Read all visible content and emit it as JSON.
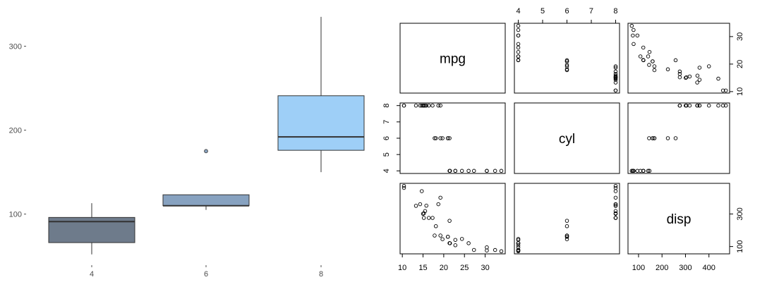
{
  "chart_data": [
    {
      "type": "box",
      "categories": [
        "4",
        "6",
        "8"
      ],
      "yticks": [
        "100",
        "200",
        "300"
      ],
      "ylim": [
        40,
        345
      ],
      "grid": false,
      "boxes": [
        {
          "category": "4",
          "min": 52,
          "q1": 66,
          "median": 91,
          "q3": 96,
          "max": 113,
          "outliers": [],
          "fill": "#6e7b8b"
        },
        {
          "category": "6",
          "min": 105,
          "q1": 110,
          "median": 110,
          "q3": 123,
          "max": 123,
          "outliers": [
            175
          ],
          "fill": "#87a2c0"
        },
        {
          "category": "8",
          "min": 150,
          "q1": 176,
          "median": 192,
          "q3": 241,
          "max": 335,
          "outliers": [],
          "fill": "#9ecff7"
        }
      ]
    },
    {
      "type": "scatter-matrix",
      "variables": [
        "mpg",
        "cyl",
        "disp"
      ],
      "ranges": {
        "mpg": [
          10.4,
          33.9
        ],
        "cyl": [
          4,
          8
        ],
        "disp": [
          71.1,
          472
        ]
      },
      "ticks": {
        "mpg": [
          10,
          15,
          20,
          25,
          30
        ],
        "cyl": [
          4,
          5,
          6,
          7,
          8
        ],
        "disp": [
          100,
          200,
          300,
          400
        ],
        "mpg_right": [
          10,
          20,
          30
        ],
        "disp_right": [
          100,
          300
        ]
      },
      "points": [
        {
          "mpg": 21.0,
          "cyl": 6,
          "disp": 160
        },
        {
          "mpg": 21.0,
          "cyl": 6,
          "disp": 160
        },
        {
          "mpg": 22.8,
          "cyl": 4,
          "disp": 108
        },
        {
          "mpg": 21.4,
          "cyl": 6,
          "disp": 258
        },
        {
          "mpg": 18.7,
          "cyl": 8,
          "disp": 360
        },
        {
          "mpg": 18.1,
          "cyl": 6,
          "disp": 225
        },
        {
          "mpg": 14.3,
          "cyl": 8,
          "disp": 360
        },
        {
          "mpg": 24.4,
          "cyl": 4,
          "disp": 146.7
        },
        {
          "mpg": 22.8,
          "cyl": 4,
          "disp": 140.8
        },
        {
          "mpg": 19.2,
          "cyl": 6,
          "disp": 167.6
        },
        {
          "mpg": 17.8,
          "cyl": 6,
          "disp": 167.6
        },
        {
          "mpg": 16.4,
          "cyl": 8,
          "disp": 275.8
        },
        {
          "mpg": 17.3,
          "cyl": 8,
          "disp": 275.8
        },
        {
          "mpg": 15.2,
          "cyl": 8,
          "disp": 275.8
        },
        {
          "mpg": 10.4,
          "cyl": 8,
          "disp": 472
        },
        {
          "mpg": 10.4,
          "cyl": 8,
          "disp": 460
        },
        {
          "mpg": 14.7,
          "cyl": 8,
          "disp": 440
        },
        {
          "mpg": 32.4,
          "cyl": 4,
          "disp": 78.7
        },
        {
          "mpg": 30.4,
          "cyl": 4,
          "disp": 75.7
        },
        {
          "mpg": 33.9,
          "cyl": 4,
          "disp": 71.1
        },
        {
          "mpg": 21.5,
          "cyl": 4,
          "disp": 120.1
        },
        {
          "mpg": 15.5,
          "cyl": 8,
          "disp": 318
        },
        {
          "mpg": 15.2,
          "cyl": 8,
          "disp": 304
        },
        {
          "mpg": 13.3,
          "cyl": 8,
          "disp": 350
        },
        {
          "mpg": 19.2,
          "cyl": 8,
          "disp": 400
        },
        {
          "mpg": 27.3,
          "cyl": 4,
          "disp": 79
        },
        {
          "mpg": 26.0,
          "cyl": 4,
          "disp": 120.3
        },
        {
          "mpg": 30.4,
          "cyl": 4,
          "disp": 95.1
        },
        {
          "mpg": 15.8,
          "cyl": 8,
          "disp": 351
        },
        {
          "mpg": 19.7,
          "cyl": 6,
          "disp": 145
        },
        {
          "mpg": 15.0,
          "cyl": 8,
          "disp": 301
        },
        {
          "mpg": 21.4,
          "cyl": 4,
          "disp": 121
        }
      ]
    }
  ]
}
